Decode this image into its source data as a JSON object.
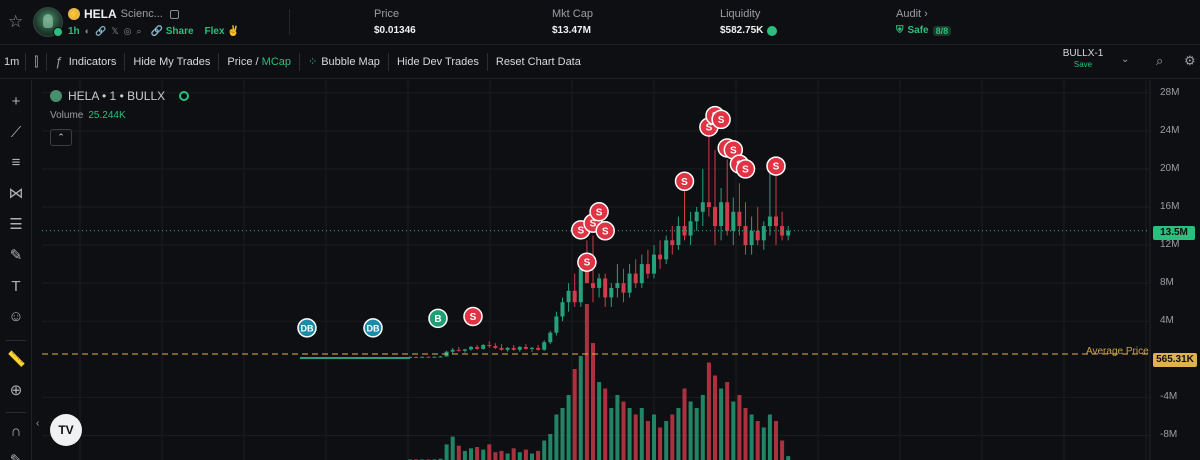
{
  "header": {
    "ticker": "HELA",
    "fullname": "Scienc...",
    "age": "1h",
    "share_label": "Share",
    "flex_label": "Flex",
    "price": {
      "label": "Price",
      "value": "$0.01346"
    },
    "mktcap": {
      "label": "Mkt Cap",
      "value": "$13.47M"
    },
    "liquidity": {
      "label": "Liquidity",
      "value": "$582.75K"
    },
    "audit": {
      "label": "Audit",
      "status": "Safe",
      "score": "8/8"
    }
  },
  "toolbar": {
    "interval": "1m",
    "indicators": "Indicators",
    "hide_my_trades": "Hide My Trades",
    "price_label": "Price",
    "mcap_label": "MCap",
    "bubble_map": "Bubble Map",
    "hide_dev_trades": "Hide Dev Trades",
    "reset_chart": "Reset Chart Data",
    "template_name": "BULLX-1",
    "template_status": "Save"
  },
  "chart": {
    "legend": "HELA • 1 • BULLX",
    "volume_label": "Volume",
    "volume_value": "25.244K",
    "current_tag": "13.5M",
    "avg_label": "Average Price",
    "avg_tag": "565.31K",
    "colors": {
      "up": "#26a17b",
      "down": "#d23b4b",
      "avg": "#e1b14f"
    }
  },
  "chart_data": {
    "type": "candlestick",
    "y_axis_ticks": [
      "28M",
      "24M",
      "20M",
      "16M",
      "12M",
      "8M",
      "4M",
      "-4M",
      "-8M"
    ],
    "ylim": [
      -9000000,
      28500000
    ],
    "current_value": 13500000,
    "average_value": 565310,
    "markers": [
      {
        "label": "DB",
        "i": 0,
        "value": 3300000
      },
      {
        "label": "DB",
        "i": 8,
        "value": 3300000
      },
      {
        "label": "B",
        "i": 18,
        "value": 4300000
      },
      {
        "label": "S",
        "i": 23,
        "value": 4500000
      },
      {
        "label": "S",
        "i": 29,
        "value": 10200000
      },
      {
        "label": "S",
        "i": 28,
        "value": 13600000
      },
      {
        "label": "S",
        "i": 30,
        "value": 14300000
      },
      {
        "label": "S",
        "i": 31,
        "value": 15500000
      },
      {
        "label": "S",
        "i": 32,
        "value": 13500000
      },
      {
        "label": "S",
        "i": 45,
        "value": 18700000
      },
      {
        "label": "S",
        "i": 49,
        "value": 24400000
      },
      {
        "label": "S",
        "i": 50,
        "value": 25600000
      },
      {
        "label": "S",
        "i": 51,
        "value": 25200000
      },
      {
        "label": "S",
        "i": 52,
        "value": 22200000
      },
      {
        "label": "S",
        "i": 53,
        "value": 22000000
      },
      {
        "label": "S",
        "i": 54,
        "value": 20500000
      },
      {
        "label": "S",
        "i": 55,
        "value": 20000000
      },
      {
        "label": "S",
        "i": 60,
        "value": 20300000
      }
    ],
    "candles": [
      {
        "o": 0.2,
        "h": 0.3,
        "l": 0.15,
        "c": 0.25,
        "v": 0.05
      },
      {
        "o": 0.25,
        "h": 0.3,
        "l": 0.2,
        "c": 0.22,
        "v": 0.05
      },
      {
        "o": 0.22,
        "h": 0.28,
        "l": 0.2,
        "c": 0.26,
        "v": 0.05
      },
      {
        "o": 0.26,
        "h": 0.3,
        "l": 0.2,
        "c": 0.24,
        "v": 0.05
      },
      {
        "o": 0.24,
        "h": 0.3,
        "l": 0.2,
        "c": 0.27,
        "v": 0.05
      },
      {
        "o": 0.27,
        "h": 0.35,
        "l": 0.25,
        "c": 0.3,
        "v": 0.1
      },
      {
        "o": 0.3,
        "h": 0.9,
        "l": 0.3,
        "c": 0.8,
        "v": 1.2
      },
      {
        "o": 0.8,
        "h": 1.2,
        "l": 0.6,
        "c": 1.0,
        "v": 1.8
      },
      {
        "o": 1.0,
        "h": 1.3,
        "l": 0.8,
        "c": 0.9,
        "v": 1.1
      },
      {
        "o": 0.9,
        "h": 1.1,
        "l": 0.7,
        "c": 1.05,
        "v": 0.7
      },
      {
        "o": 1.05,
        "h": 1.4,
        "l": 0.9,
        "c": 1.3,
        "v": 0.9
      },
      {
        "o": 1.3,
        "h": 1.5,
        "l": 1.0,
        "c": 1.1,
        "v": 1.0
      },
      {
        "o": 1.1,
        "h": 1.6,
        "l": 1.0,
        "c": 1.5,
        "v": 0.8
      },
      {
        "o": 1.5,
        "h": 1.9,
        "l": 1.2,
        "c": 1.4,
        "v": 1.2
      },
      {
        "o": 1.4,
        "h": 1.7,
        "l": 1.1,
        "c": 1.2,
        "v": 0.6
      },
      {
        "o": 1.2,
        "h": 1.6,
        "l": 0.9,
        "c": 1.0,
        "v": 0.7
      },
      {
        "o": 1.0,
        "h": 1.3,
        "l": 0.8,
        "c": 1.2,
        "v": 0.5
      },
      {
        "o": 1.2,
        "h": 1.5,
        "l": 0.9,
        "c": 1.0,
        "v": 0.9
      },
      {
        "o": 1.0,
        "h": 1.4,
        "l": 0.8,
        "c": 1.3,
        "v": 0.6
      },
      {
        "o": 1.3,
        "h": 1.6,
        "l": 1.0,
        "c": 1.1,
        "v": 0.8
      },
      {
        "o": 1.1,
        "h": 1.3,
        "l": 0.8,
        "c": 1.2,
        "v": 0.5
      },
      {
        "o": 1.2,
        "h": 1.5,
        "l": 0.9,
        "c": 1.0,
        "v": 0.7
      },
      {
        "o": 1.0,
        "h": 2.0,
        "l": 0.9,
        "c": 1.8,
        "v": 1.5
      },
      {
        "o": 1.8,
        "h": 3.0,
        "l": 1.6,
        "c": 2.8,
        "v": 2.0
      },
      {
        "o": 2.8,
        "h": 5.0,
        "l": 2.5,
        "c": 4.5,
        "v": 3.5
      },
      {
        "o": 4.5,
        "h": 6.5,
        "l": 4.0,
        "c": 6.0,
        "v": 4.0
      },
      {
        "o": 6.0,
        "h": 8.0,
        "l": 5.0,
        "c": 7.2,
        "v": 5.0
      },
      {
        "o": 7.2,
        "h": 9.0,
        "l": 5.5,
        "c": 6.0,
        "v": 7.0
      },
      {
        "o": 6.0,
        "h": 10.5,
        "l": 5.5,
        "c": 9.5,
        "v": 8.0
      },
      {
        "o": 9.5,
        "h": 12.5,
        "l": 8.5,
        "c": 8.0,
        "v": 12.0
      },
      {
        "o": 8.0,
        "h": 13.0,
        "l": 6.0,
        "c": 7.5,
        "v": 9.0
      },
      {
        "o": 7.5,
        "h": 9.0,
        "l": 6.5,
        "c": 8.5,
        "v": 6.0
      },
      {
        "o": 8.5,
        "h": 9.0,
        "l": 5.5,
        "c": 6.5,
        "v": 5.5
      },
      {
        "o": 6.5,
        "h": 8.0,
        "l": 5.5,
        "c": 7.5,
        "v": 4.0
      },
      {
        "o": 7.5,
        "h": 10.0,
        "l": 6.5,
        "c": 8.0,
        "v": 5.0
      },
      {
        "o": 8.0,
        "h": 9.5,
        "l": 6.0,
        "c": 7.0,
        "v": 4.5
      },
      {
        "o": 7.0,
        "h": 10.0,
        "l": 6.5,
        "c": 9.0,
        "v": 4.0
      },
      {
        "o": 9.0,
        "h": 10.5,
        "l": 7.5,
        "c": 8.0,
        "v": 3.5
      },
      {
        "o": 8.0,
        "h": 11.0,
        "l": 7.5,
        "c": 10.0,
        "v": 4.0
      },
      {
        "o": 10.0,
        "h": 11.5,
        "l": 8.5,
        "c": 9.0,
        "v": 3.0
      },
      {
        "o": 9.0,
        "h": 12.0,
        "l": 8.5,
        "c": 11.0,
        "v": 3.5
      },
      {
        "o": 11.0,
        "h": 12.5,
        "l": 9.5,
        "c": 10.5,
        "v": 2.5
      },
      {
        "o": 10.5,
        "h": 13.0,
        "l": 10.0,
        "c": 12.5,
        "v": 3.0
      },
      {
        "o": 12.5,
        "h": 14.0,
        "l": 11.0,
        "c": 12.0,
        "v": 3.5
      },
      {
        "o": 12.0,
        "h": 15.0,
        "l": 11.5,
        "c": 14.0,
        "v": 4.0
      },
      {
        "o": 14.0,
        "h": 19.0,
        "l": 12.5,
        "c": 13.0,
        "v": 5.5
      },
      {
        "o": 13.0,
        "h": 15.5,
        "l": 12.0,
        "c": 14.5,
        "v": 4.5
      },
      {
        "o": 14.5,
        "h": 16.0,
        "l": 13.5,
        "c": 15.5,
        "v": 4.0
      },
      {
        "o": 15.5,
        "h": 20.0,
        "l": 14.0,
        "c": 16.5,
        "v": 5.0
      },
      {
        "o": 16.5,
        "h": 24.0,
        "l": 15.0,
        "c": 16.0,
        "v": 7.5
      },
      {
        "o": 16.0,
        "h": 22.0,
        "l": 12.0,
        "c": 14.0,
        "v": 6.5
      },
      {
        "o": 14.0,
        "h": 18.0,
        "l": 12.5,
        "c": 16.5,
        "v": 5.5
      },
      {
        "o": 16.5,
        "h": 21.0,
        "l": 13.0,
        "c": 13.5,
        "v": 6.0
      },
      {
        "o": 13.5,
        "h": 17.0,
        "l": 12.0,
        "c": 15.5,
        "v": 4.5
      },
      {
        "o": 15.5,
        "h": 18.5,
        "l": 13.0,
        "c": 14.0,
        "v": 5.0
      },
      {
        "o": 14.0,
        "h": 16.5,
        "l": 11.0,
        "c": 12.0,
        "v": 4.0
      },
      {
        "o": 12.0,
        "h": 15.0,
        "l": 11.0,
        "c": 13.5,
        "v": 3.5
      },
      {
        "o": 13.5,
        "h": 16.0,
        "l": 12.0,
        "c": 12.5,
        "v": 3.0
      },
      {
        "o": 12.5,
        "h": 14.5,
        "l": 11.5,
        "c": 14.0,
        "v": 2.5
      },
      {
        "o": 14.0,
        "h": 20.0,
        "l": 13.0,
        "c": 15.0,
        "v": 3.5
      },
      {
        "o": 15.0,
        "h": 19.5,
        "l": 12.0,
        "c": 14.0,
        "v": 3.0
      },
      {
        "o": 14.0,
        "h": 15.5,
        "l": 12.5,
        "c": 13.0,
        "v": 1.5
      },
      {
        "o": 13.0,
        "h": 14.0,
        "l": 12.5,
        "c": 13.5,
        "v": 0.3
      }
    ]
  }
}
